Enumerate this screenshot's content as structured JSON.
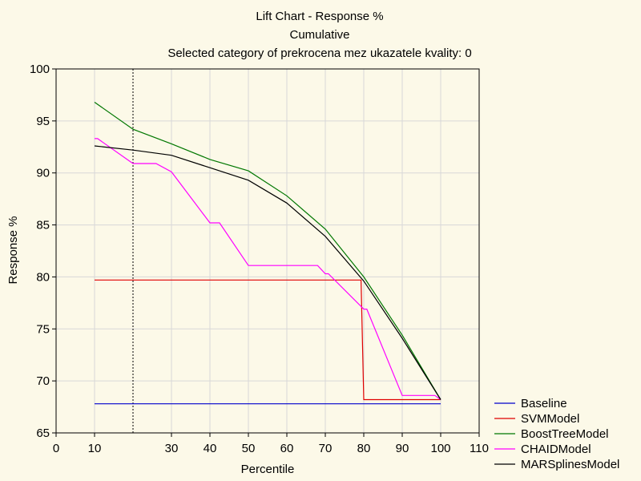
{
  "chart_data": {
    "type": "line",
    "title": "Lift Chart - Response %",
    "subtitle": "Cumulative",
    "subtitle2": "Selected category of prekrocena mez ukazatele kvality: 0",
    "xlabel": "Percentile",
    "ylabel": "Response %",
    "xlim": [
      0,
      110
    ],
    "ylim": [
      65,
      100
    ],
    "x_ticks": [
      0,
      10,
      30,
      40,
      50,
      60,
      70,
      80,
      90,
      100,
      110
    ],
    "y_ticks": [
      65,
      70,
      75,
      80,
      85,
      90,
      95,
      100
    ],
    "grid": true,
    "reference_line_x": 20,
    "legend_position": "bottom-right",
    "series": [
      {
        "name": "Baseline",
        "color": "#0000cc",
        "points": [
          [
            10,
            67.8
          ],
          [
            100,
            67.8
          ]
        ]
      },
      {
        "name": "SVMModel",
        "color": "#e00000",
        "points": [
          [
            10,
            79.7
          ],
          [
            79.3,
            79.7
          ],
          [
            80,
            68.2
          ],
          [
            100,
            68.2
          ]
        ]
      },
      {
        "name": "BoostTreeModel",
        "color": "#007700",
        "points": [
          [
            10,
            96.8
          ],
          [
            20,
            94.2
          ],
          [
            30,
            92.8
          ],
          [
            40,
            91.3
          ],
          [
            50,
            90.2
          ],
          [
            60,
            87.8
          ],
          [
            70,
            84.6
          ],
          [
            80,
            80.0
          ],
          [
            90,
            74.4
          ],
          [
            100,
            68.2
          ]
        ]
      },
      {
        "name": "CHAIDModel",
        "color": "#ff00ff",
        "points": [
          [
            10,
            93.3
          ],
          [
            10.8,
            93.3
          ],
          [
            20,
            90.9
          ],
          [
            26,
            90.9
          ],
          [
            30,
            90.1
          ],
          [
            40,
            85.2
          ],
          [
            42.5,
            85.2
          ],
          [
            50,
            81.1
          ],
          [
            68,
            81.1
          ],
          [
            70,
            80.3
          ],
          [
            70.8,
            80.3
          ],
          [
            80,
            76.9
          ],
          [
            80.8,
            76.9
          ],
          [
            90,
            68.6
          ],
          [
            98.5,
            68.6
          ],
          [
            100,
            68.2
          ]
        ]
      },
      {
        "name": "MARSplinesModel",
        "color": "#000000",
        "points": [
          [
            10,
            92.6
          ],
          [
            20,
            92.2
          ],
          [
            30,
            91.7
          ],
          [
            40,
            90.5
          ],
          [
            50,
            89.3
          ],
          [
            60,
            87.1
          ],
          [
            70,
            83.9
          ],
          [
            80,
            79.6
          ],
          [
            90,
            74.1
          ],
          [
            100,
            68.2
          ]
        ]
      }
    ]
  }
}
